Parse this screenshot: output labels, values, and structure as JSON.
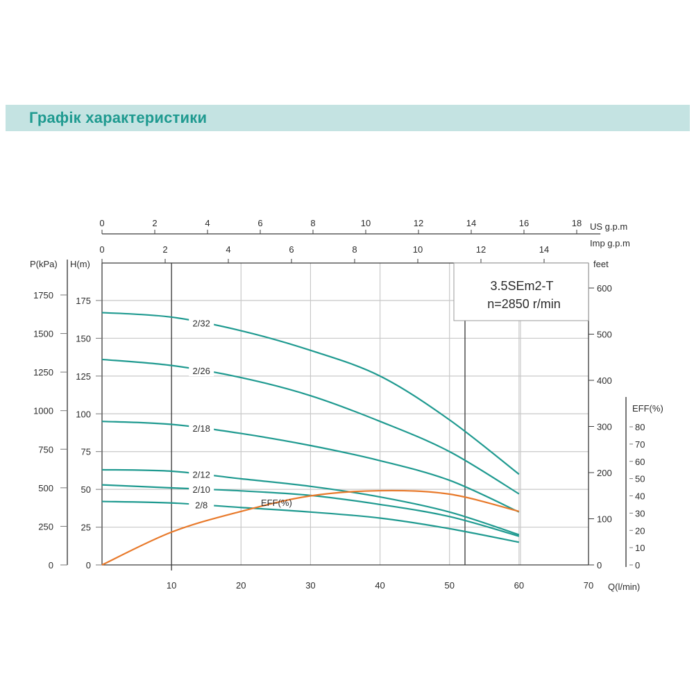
{
  "header": {
    "title": "Графік характеристики"
  },
  "colors": {
    "banner_bg": "#c4e3e2",
    "title": "#1f9a90",
    "head_curve": "#1f9a90",
    "eff_curve": "#e8792a",
    "grid": "#c8c8c8",
    "axis": "#3a3a3a"
  },
  "model_box": {
    "line1": "3.5SEm2-T",
    "line2": "n=2850 r/min"
  },
  "axes": {
    "us_gpm": {
      "label": "US  g.p.m",
      "ticks": [
        "0",
        "2",
        "4",
        "6",
        "8",
        "10",
        "12",
        "14",
        "16",
        "18"
      ]
    },
    "imp_gpm": {
      "label": "Imp  g.p.m",
      "ticks": [
        "0",
        "2",
        "4",
        "6",
        "8",
        "10",
        "12",
        "14"
      ]
    },
    "pressure": {
      "label": "P(kPa)",
      "ticks": [
        "0",
        "250",
        "500",
        "750",
        "1000",
        "1250",
        "1500",
        "1750"
      ]
    },
    "head": {
      "label": "H(m)",
      "ticks": [
        "0",
        "25",
        "50",
        "75",
        "100",
        "125",
        "150",
        "175"
      ]
    },
    "feet": {
      "label": "feet",
      "ticks": [
        "0",
        "100",
        "200",
        "300",
        "400",
        "500",
        "600"
      ]
    },
    "eff": {
      "label": "EFF(%)",
      "ticks": [
        "0",
        "10",
        "20",
        "30",
        "40",
        "50",
        "60",
        "70",
        "80"
      ]
    },
    "flow": {
      "label": "Q(l/min)",
      "ticks": [
        "0",
        "10",
        "20",
        "30",
        "40",
        "50",
        "60",
        "70"
      ]
    }
  },
  "chart_data": {
    "type": "line",
    "title": "Графік характеристики — 3.5SEm2-T, n=2850 r/min",
    "xlabel": "Q(l/min)",
    "ylabel": "H(m)",
    "xlim": [
      0,
      70
    ],
    "ylim": [
      0,
      200
    ],
    "secondary_axes": {
      "pressure_kPa": [
        0,
        1750
      ],
      "feet": [
        0,
        600
      ],
      "eff_percent": [
        0,
        80
      ],
      "us_gpm": [
        0,
        18
      ],
      "imp_gpm": [
        0,
        14
      ]
    },
    "grid": true,
    "x": [
      0,
      10,
      20,
      30,
      40,
      50,
      60
    ],
    "series": [
      {
        "name": "2/32",
        "axis": "H(m)",
        "values": [
          167,
          164,
          155,
          142,
          125,
          96,
          60
        ]
      },
      {
        "name": "2/26",
        "axis": "H(m)",
        "values": [
          136,
          132,
          124,
          112,
          95,
          75,
          47
        ]
      },
      {
        "name": "2/18",
        "axis": "H(m)",
        "values": [
          95,
          93,
          87,
          79,
          69,
          56,
          35
        ]
      },
      {
        "name": "2/12",
        "axis": "H(m)",
        "values": [
          63,
          62,
          57,
          52,
          45,
          35,
          20
        ]
      },
      {
        "name": "2/10",
        "axis": "H(m)",
        "values": [
          53,
          51,
          49,
          46,
          40,
          32,
          19
        ]
      },
      {
        "name": "2/8",
        "axis": "H(m)",
        "values": [
          42,
          41,
          38,
          35,
          31,
          24,
          15
        ]
      },
      {
        "name": "EFF(%)",
        "axis": "EFF(%)",
        "values": [
          0,
          19,
          31,
          40,
          43,
          41,
          31
        ]
      }
    ],
    "annotations": [
      "3.5SEm2-T",
      "n=2850 r/min"
    ]
  }
}
